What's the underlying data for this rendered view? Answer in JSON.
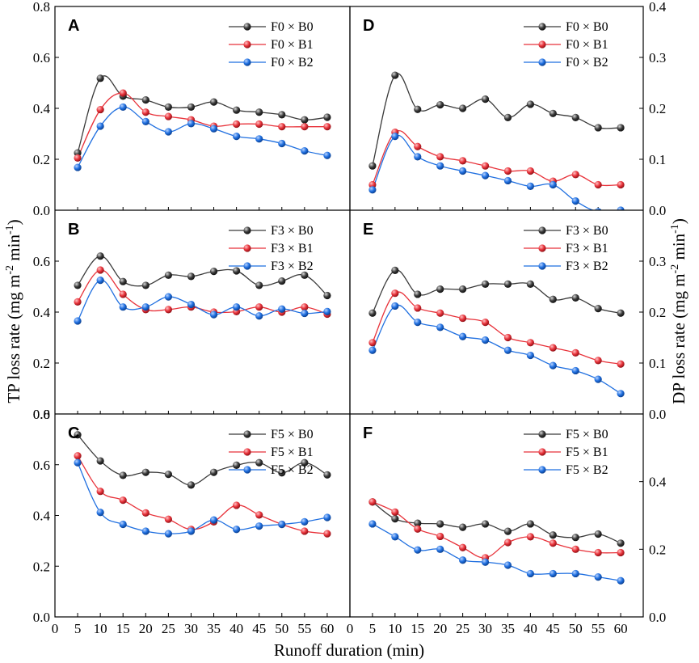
{
  "colors": {
    "B0": "#3a3a3a",
    "B1": "#e8323a",
    "B2": "#1f6fe0"
  },
  "axes": {
    "xlabel": "Runoff duration (min)",
    "ylabel_left": {
      "base": "TP loss rate (mg m",
      "sup1": "-2",
      "mid": " min",
      "sup2": "-1",
      "end": ")"
    },
    "ylabel_right": {
      "base": "DP loss rate (mg m",
      "sup1": "-2",
      "mid": " min",
      "sup2": "-1",
      "end": ")"
    },
    "x_ticks": [
      "0",
      "5",
      "10",
      "15",
      "20",
      "25",
      "30",
      "35",
      "40",
      "45",
      "50",
      "55",
      "60"
    ]
  },
  "chart_data": [
    {
      "id": "A",
      "label": "A",
      "type": "line",
      "ylim": [
        0,
        0.8
      ],
      "side": "left",
      "y_ticks": [
        "0.0",
        "0.2",
        "0.4",
        "0.6",
        "0.8"
      ],
      "x": [
        5,
        10,
        15,
        20,
        25,
        30,
        35,
        40,
        45,
        50,
        55,
        60
      ],
      "series": [
        {
          "name": "F0 × B0",
          "key": "B0",
          "values": [
            0.225,
            0.518,
            0.448,
            0.433,
            0.405,
            0.405,
            0.425,
            0.393,
            0.385,
            0.375,
            0.355,
            0.365
          ]
        },
        {
          "name": "F0 × B1",
          "key": "B1",
          "values": [
            0.205,
            0.395,
            0.46,
            0.385,
            0.368,
            0.355,
            0.33,
            0.338,
            0.338,
            0.328,
            0.328,
            0.328
          ]
        },
        {
          "name": "F0 × B2",
          "key": "B2",
          "values": [
            0.168,
            0.33,
            0.405,
            0.348,
            0.308,
            0.34,
            0.32,
            0.29,
            0.28,
            0.262,
            0.233,
            0.215
          ]
        }
      ]
    },
    {
      "id": "B",
      "label": "B",
      "type": "line",
      "ylim": [
        0,
        0.8
      ],
      "side": "left",
      "y_ticks": [
        "0.0",
        "0.2",
        "0.4",
        "0.6",
        ""
      ],
      "x": [
        5,
        10,
        15,
        20,
        25,
        30,
        35,
        40,
        45,
        50,
        55,
        60
      ],
      "series": [
        {
          "name": "F3 × B0",
          "key": "B0",
          "values": [
            0.505,
            0.62,
            0.52,
            0.505,
            0.545,
            0.54,
            0.56,
            0.562,
            0.505,
            0.522,
            0.545,
            0.465
          ]
        },
        {
          "name": "F3 × B1",
          "key": "B1",
          "values": [
            0.44,
            0.565,
            0.47,
            0.41,
            0.41,
            0.42,
            0.4,
            0.402,
            0.42,
            0.4,
            0.42,
            0.392
          ]
        },
        {
          "name": "F3 × B2",
          "key": "B2",
          "values": [
            0.365,
            0.525,
            0.42,
            0.42,
            0.46,
            0.43,
            0.39,
            0.42,
            0.385,
            0.412,
            0.395,
            0.402
          ]
        }
      ]
    },
    {
      "id": "C",
      "label": "C",
      "type": "line",
      "ylim": [
        0,
        0.8
      ],
      "side": "left",
      "y_ticks": [
        "0.0",
        "0.2",
        "0.4",
        "0.6",
        "0.8"
      ],
      "x": [
        5,
        10,
        15,
        20,
        25,
        30,
        35,
        40,
        45,
        50,
        55,
        60
      ],
      "series": [
        {
          "name": "F5 × B0",
          "key": "B0",
          "values": [
            0.718,
            0.615,
            0.558,
            0.57,
            0.562,
            0.52,
            0.57,
            0.598,
            0.608,
            0.568,
            0.608,
            0.56
          ]
        },
        {
          "name": "F5 × B1",
          "key": "B1",
          "values": [
            0.635,
            0.495,
            0.46,
            0.41,
            0.385,
            0.345,
            0.375,
            0.44,
            0.402,
            0.365,
            0.338,
            0.328
          ]
        },
        {
          "name": "F5 × B2",
          "key": "B2",
          "values": [
            0.608,
            0.412,
            0.365,
            0.338,
            0.328,
            0.338,
            0.382,
            0.345,
            0.358,
            0.365,
            0.375,
            0.392
          ]
        }
      ]
    },
    {
      "id": "D",
      "label": "D",
      "type": "line",
      "ylim": [
        0,
        0.4
      ],
      "side": "right",
      "y_ticks": [
        "0.0",
        "0.1",
        "0.2",
        "0.3",
        "0.4"
      ],
      "x": [
        5,
        10,
        15,
        20,
        25,
        30,
        35,
        40,
        45,
        50,
        55,
        60
      ],
      "series": [
        {
          "name": "F0 × B0",
          "key": "B0",
          "values": [
            0.087,
            0.265,
            0.198,
            0.207,
            0.2,
            0.218,
            0.182,
            0.208,
            0.19,
            0.182,
            0.162,
            0.162
          ]
        },
        {
          "name": "F0 × B1",
          "key": "B1",
          "values": [
            0.05,
            0.153,
            0.125,
            0.105,
            0.097,
            0.087,
            0.077,
            0.077,
            0.057,
            0.07,
            0.05,
            0.05
          ]
        },
        {
          "name": "F0 × B2",
          "key": "B2",
          "values": [
            0.04,
            0.145,
            0.105,
            0.087,
            0.077,
            0.068,
            0.058,
            0.047,
            0.05,
            0.018,
            -0.003,
            0.0
          ]
        }
      ]
    },
    {
      "id": "E",
      "label": "E",
      "type": "line",
      "ylim": [
        0,
        0.4
      ],
      "side": "right",
      "y_ticks": [
        "0.0",
        "0.1",
        "0.2",
        "0.3",
        ""
      ],
      "x": [
        5,
        10,
        15,
        20,
        25,
        30,
        35,
        40,
        45,
        50,
        55,
        60
      ],
      "series": [
        {
          "name": "F3 × B0",
          "key": "B0",
          "values": [
            0.198,
            0.282,
            0.235,
            0.245,
            0.245,
            0.255,
            0.255,
            0.255,
            0.225,
            0.228,
            0.207,
            0.198
          ]
        },
        {
          "name": "F3 × B1",
          "key": "B1",
          "values": [
            0.14,
            0.237,
            0.208,
            0.198,
            0.188,
            0.18,
            0.15,
            0.14,
            0.13,
            0.12,
            0.105,
            0.098
          ]
        },
        {
          "name": "F3 × B2",
          "key": "B2",
          "values": [
            0.125,
            0.212,
            0.18,
            0.17,
            0.152,
            0.145,
            0.125,
            0.115,
            0.095,
            0.085,
            0.068,
            0.04
          ]
        }
      ]
    },
    {
      "id": "F",
      "label": "F",
      "type": "line",
      "ylim": [
        0,
        0.6
      ],
      "side": "right",
      "y_ticks": [
        "0.0",
        "0.2",
        "0.4",
        ""
      ],
      "x": [
        5,
        10,
        15,
        20,
        25,
        30,
        35,
        40,
        45,
        50,
        55,
        60
      ],
      "series": [
        {
          "name": "F5 × B0",
          "key": "B0",
          "values": [
            0.34,
            0.29,
            0.277,
            0.275,
            0.265,
            0.275,
            0.253,
            0.275,
            0.242,
            0.235,
            0.245,
            0.218
          ]
        },
        {
          "name": "F5 × B1",
          "key": "B1",
          "values": [
            0.34,
            0.31,
            0.26,
            0.238,
            0.205,
            0.175,
            0.22,
            0.237,
            0.218,
            0.2,
            0.19,
            0.19
          ]
        },
        {
          "name": "F5 × B2",
          "key": "B2",
          "values": [
            0.275,
            0.237,
            0.198,
            0.2,
            0.168,
            0.162,
            0.153,
            0.128,
            0.128,
            0.128,
            0.118,
            0.107
          ]
        }
      ]
    }
  ]
}
